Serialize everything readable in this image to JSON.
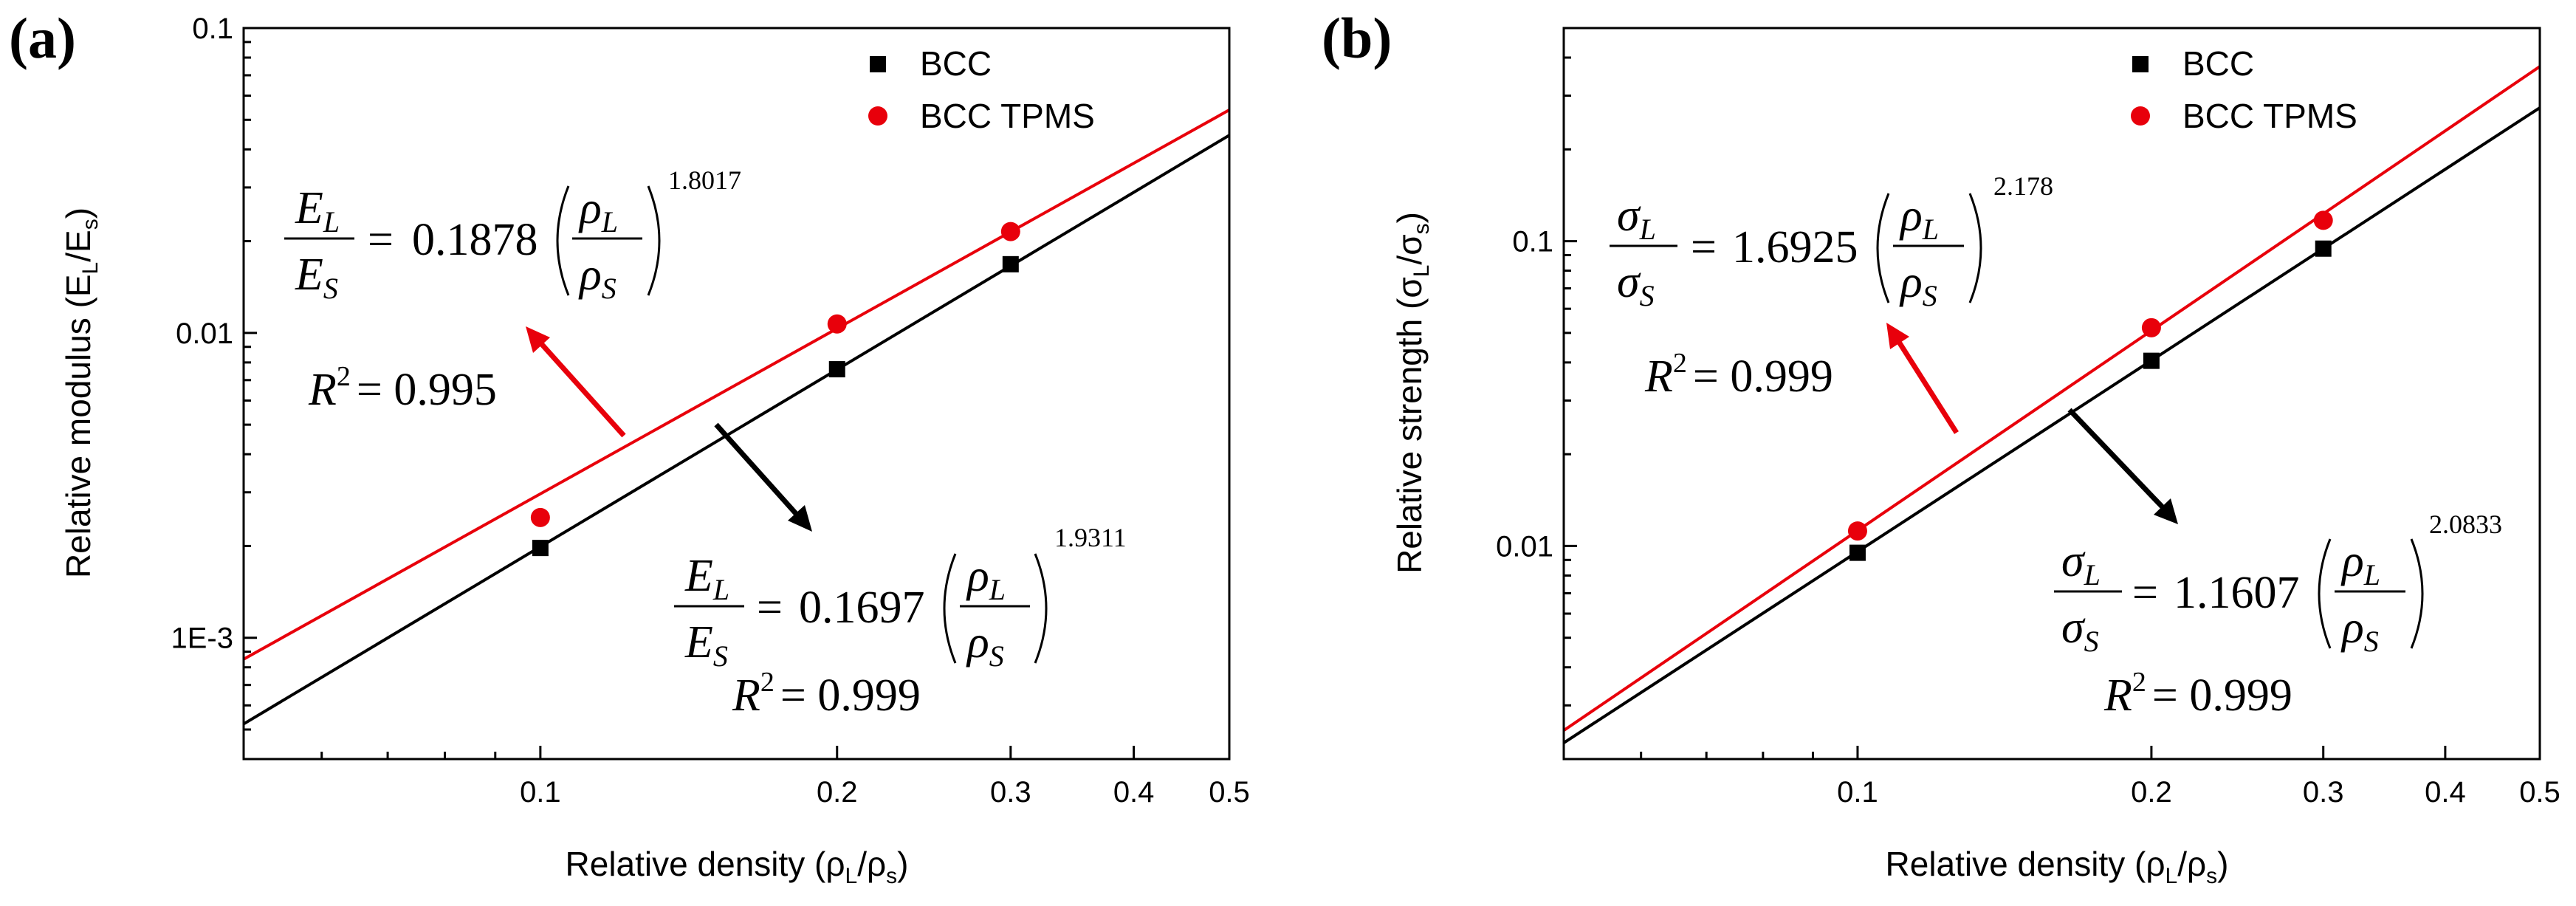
{
  "chart_data": [
    {
      "panel_label": "(a)",
      "type": "scatter",
      "xscale": "log",
      "yscale": "log",
      "xlabel_main": "Relative density (",
      "xlabel_sym1": "ρ",
      "xlabel_sub1": "L",
      "xlabel_sym2": "/ρ",
      "xlabel_sub2": "s",
      "xlabel_close": ")",
      "ylabel_main": "Relative modulus (E",
      "ylabel_sub1": "L",
      "ylabel_mid": "/E",
      "ylabel_sub2": "s",
      "ylabel_close": ")",
      "xlim": [
        0.05,
        0.5
      ],
      "ylim": [
        0.0004,
        0.1
      ],
      "xticks": [
        {
          "v": 0.1,
          "label": "0.1"
        },
        {
          "v": 0.2,
          "label": "0.2"
        },
        {
          "v": 0.3,
          "label": "0.3"
        },
        {
          "v": 0.4,
          "label": "0.4"
        },
        {
          "v": 0.5,
          "label": "0.5"
        }
      ],
      "yticks": [
        {
          "v": 0.001,
          "label": "1E-3"
        },
        {
          "v": 0.01,
          "label": "0.01"
        },
        {
          "v": 0.1,
          "label": "0.1"
        }
      ],
      "legend_position": "top-right",
      "series": [
        {
          "name": "BCC",
          "color": "#000000",
          "marker": "square",
          "x": [
            0.1,
            0.2,
            0.3
          ],
          "y": [
            0.00197,
            0.0076,
            0.0168
          ],
          "fit": {
            "coef": 0.1697,
            "exp": 1.9311
          }
        },
        {
          "name": "BCC TPMS",
          "color": "#e8000b",
          "marker": "circle",
          "x": [
            0.1,
            0.2,
            0.3
          ],
          "y": [
            0.00248,
            0.0107,
            0.0215
          ],
          "fit": {
            "coef": 0.1878,
            "exp": 1.8017
          }
        }
      ],
      "annotations": [
        {
          "series": "BCC TPMS",
          "num": "E",
          "num_sub": "L",
          "den": "E",
          "den_sub": "S",
          "equals": "=",
          "coef": "0.1878",
          "rho_num": "ρ",
          "rho_num_sub": "L",
          "rho_den": "ρ",
          "rho_den_sub": "S",
          "exponent": "1.8017",
          "r2_sym": "R",
          "r2_sup": "2",
          "r2_text": "= 0.995"
        },
        {
          "series": "BCC",
          "num": "E",
          "num_sub": "L",
          "den": "E",
          "den_sub": "S",
          "equals": "=",
          "coef": "0.1697",
          "rho_num": "ρ",
          "rho_num_sub": "L",
          "rho_den": "ρ",
          "rho_den_sub": "S",
          "exponent": "1.9311",
          "r2_sym": "R",
          "r2_sup": "2",
          "r2_text": "= 0.999"
        }
      ]
    },
    {
      "panel_label": "(b)",
      "type": "scatter",
      "xscale": "log",
      "yscale": "log",
      "xlabel_main": "Relative density (",
      "xlabel_sym1": "ρ",
      "xlabel_sub1": "L",
      "xlabel_sym2": "/ρ",
      "xlabel_sub2": "s",
      "xlabel_close": ")",
      "ylabel_main": "Relative strength (",
      "ylabel_sub1": "L",
      "ylabel_sym1": "σ",
      "ylabel_mid": "/σ",
      "ylabel_sub2": "s",
      "ylabel_close": ")",
      "xlim": [
        0.05,
        0.5
      ],
      "ylim": [
        0.002,
        0.5
      ],
      "xticks": [
        {
          "v": 0.1,
          "label": "0.1"
        },
        {
          "v": 0.2,
          "label": "0.2"
        },
        {
          "v": 0.3,
          "label": "0.3"
        },
        {
          "v": 0.4,
          "label": "0.4"
        },
        {
          "v": 0.5,
          "label": "0.5"
        }
      ],
      "yticks": [
        {
          "v": 0.01,
          "label": "0.01"
        },
        {
          "v": 0.1,
          "label": "0.1"
        }
      ],
      "legend_position": "top-right",
      "series": [
        {
          "name": "BCC",
          "color": "#000000",
          "marker": "square",
          "x": [
            0.1,
            0.2,
            0.3
          ],
          "y": [
            0.0095,
            0.0405,
            0.0945
          ],
          "fit": {
            "coef": 1.1607,
            "exp": 2.0833
          }
        },
        {
          "name": "BCC TPMS",
          "color": "#e8000b",
          "marker": "circle",
          "x": [
            0.1,
            0.2,
            0.3
          ],
          "y": [
            0.0112,
            0.052,
            0.117
          ],
          "fit": {
            "coef": 1.6925,
            "exp": 2.178
          }
        }
      ],
      "annotations": [
        {
          "series": "BCC TPMS",
          "num": "σ",
          "num_sub": "L",
          "den": "σ",
          "den_sub": "S",
          "equals": "=",
          "coef": "1.6925",
          "rho_num": "ρ",
          "rho_num_sub": "L",
          "rho_den": "ρ",
          "rho_den_sub": "S",
          "exponent": "2.178",
          "r2_sym": "R",
          "r2_sup": "2",
          "r2_text": "= 0.999"
        },
        {
          "series": "BCC",
          "num": "σ",
          "num_sub": "L",
          "den": "σ",
          "den_sub": "S",
          "equals": "=",
          "coef": "1.1607",
          "rho_num": "ρ",
          "rho_num_sub": "L",
          "rho_den": "ρ",
          "rho_den_sub": "S",
          "exponent": "2.0833",
          "r2_sym": "R",
          "r2_sup": "2",
          "r2_text": "= 0.999"
        }
      ]
    }
  ]
}
